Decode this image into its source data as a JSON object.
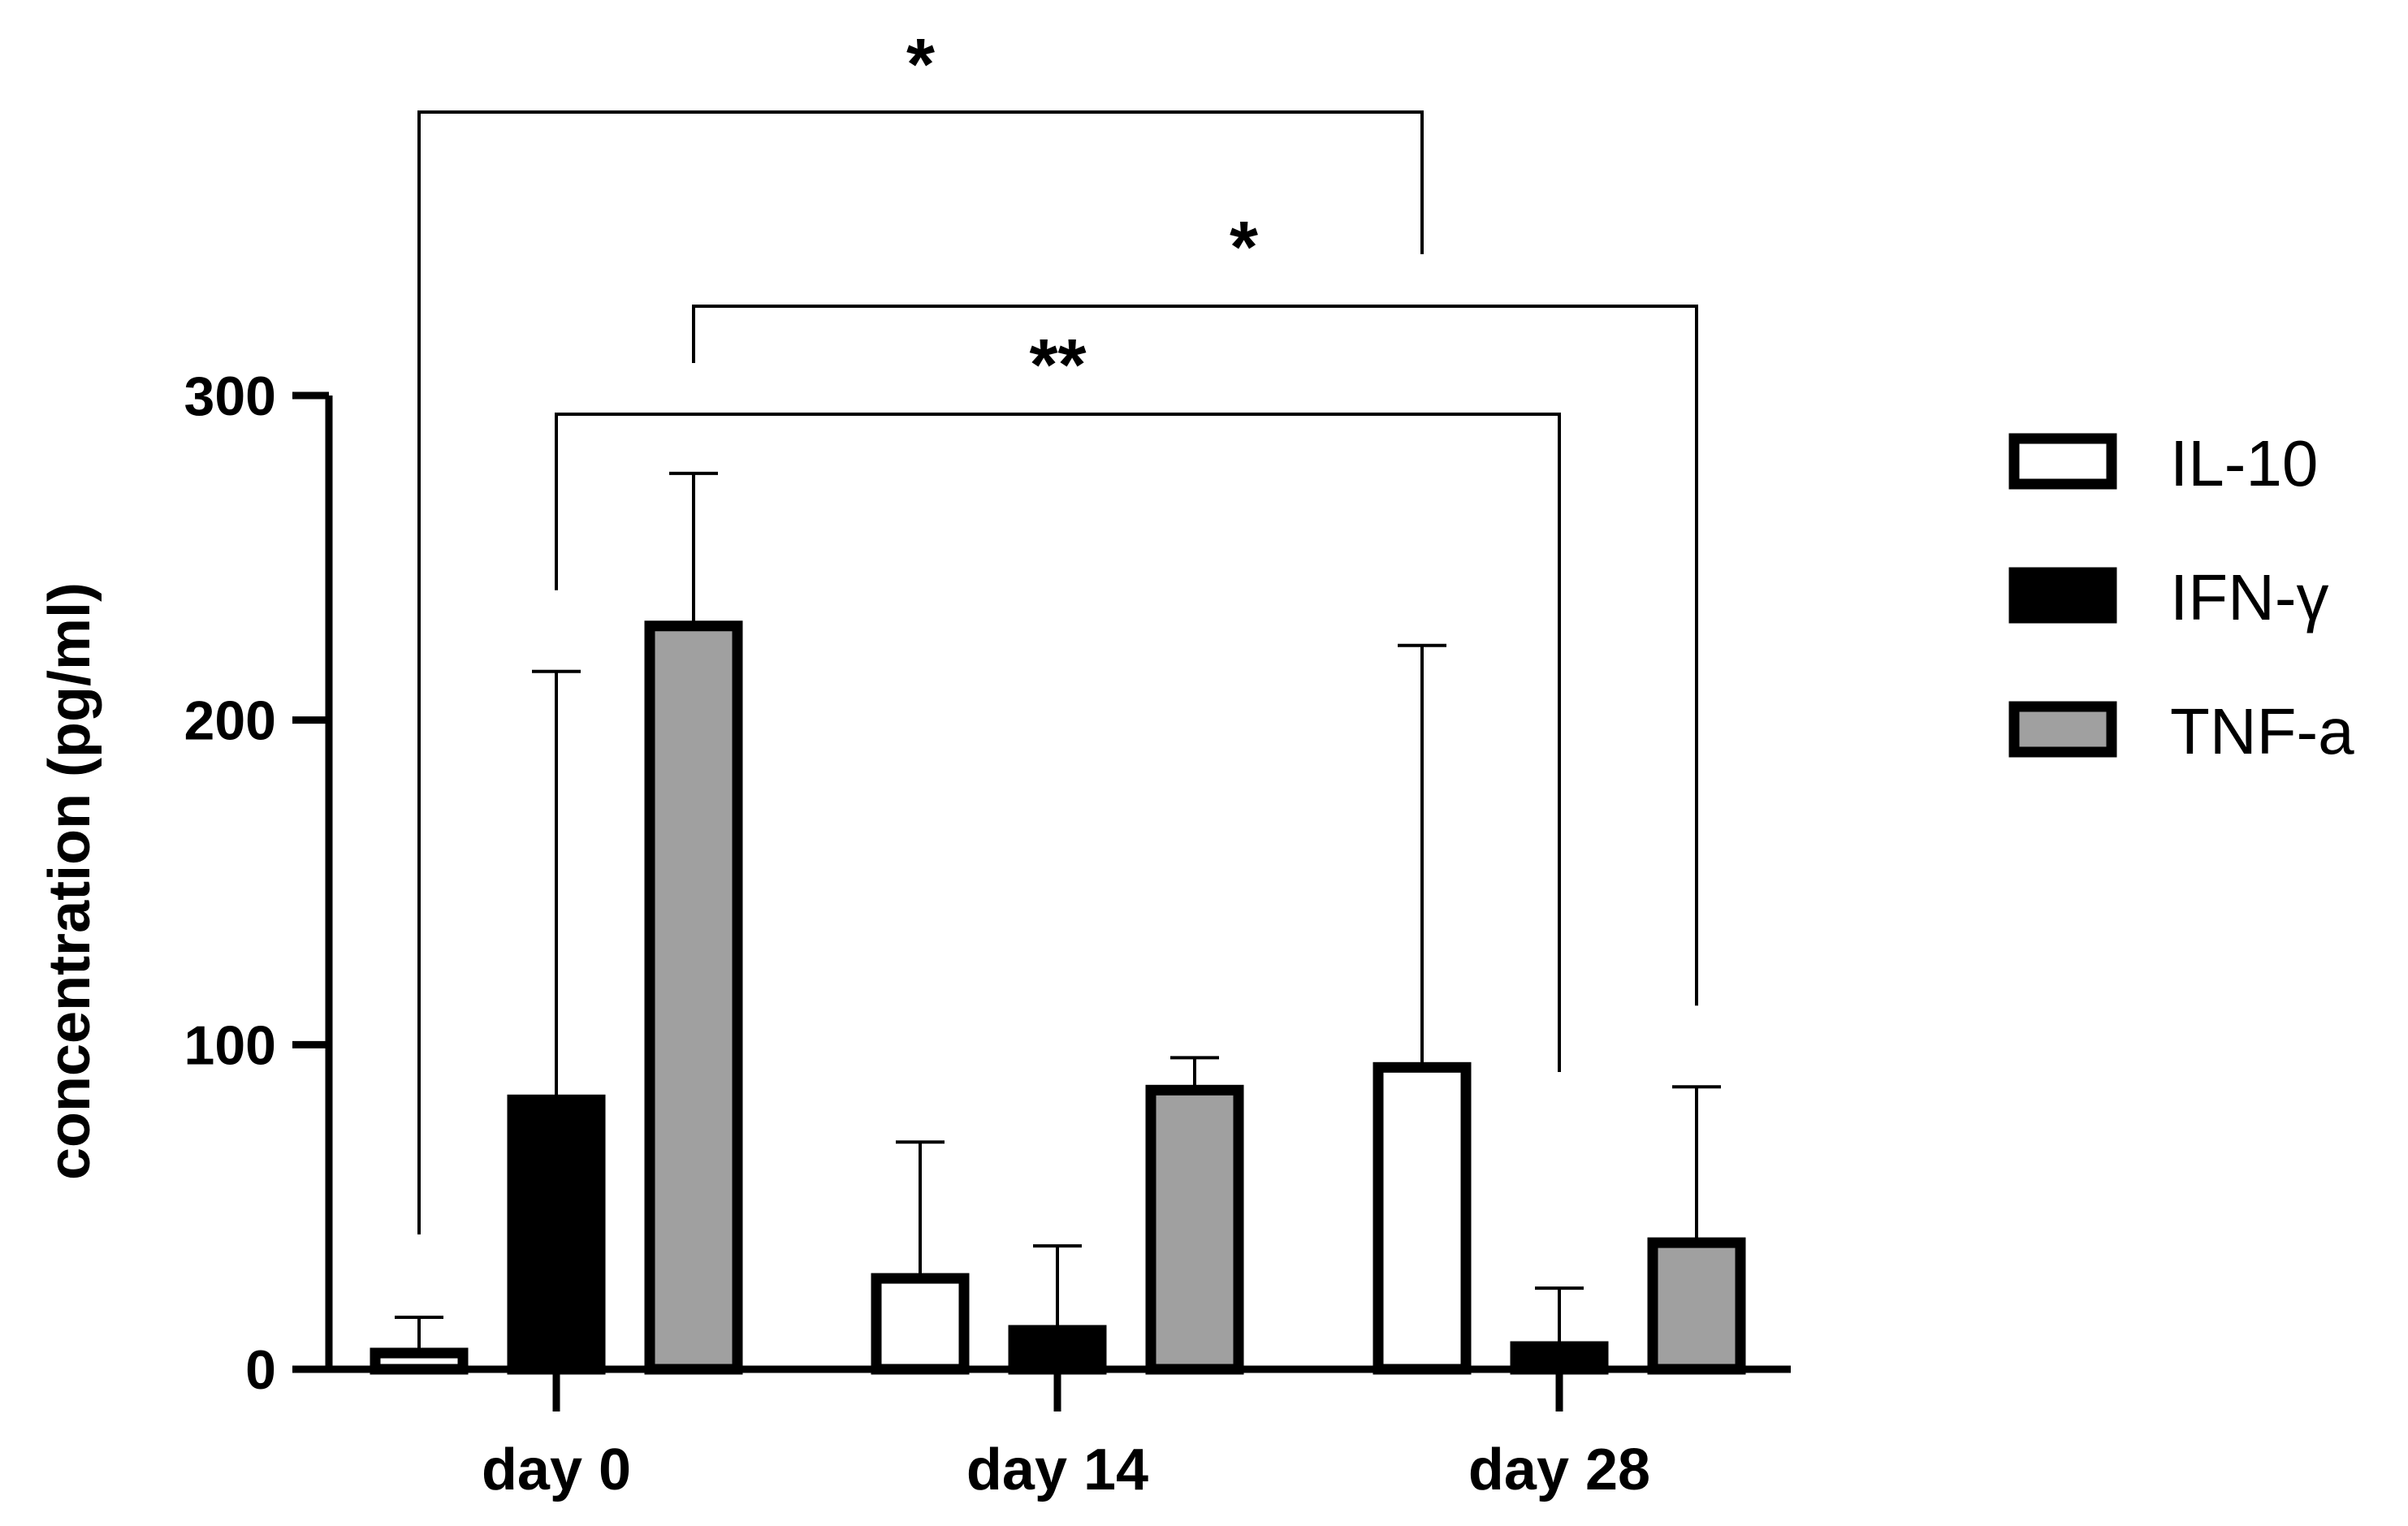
{
  "chart_data": {
    "type": "bar",
    "categories": [
      "day 0",
      "day 14",
      "day 28"
    ],
    "ylabel": "concentration (pg/ml)",
    "ylim": [
      0,
      300
    ],
    "yticks": [
      0,
      100,
      200,
      300
    ],
    "grid": false,
    "legend_position": "right",
    "series": [
      {
        "name": "IL-10",
        "fill": "#ffffff",
        "values": [
          5,
          28,
          93
        ],
        "errors": [
          11,
          42,
          130
        ]
      },
      {
        "name": "IFN-γ",
        "fill": "#000000",
        "values": [
          83,
          12,
          7
        ],
        "errors": [
          132,
          26,
          18
        ]
      },
      {
        "name": "TNF-a",
        "fill": "#a0a0a0",
        "values": [
          229,
          86,
          39
        ],
        "errors": [
          47,
          10,
          48
        ]
      }
    ],
    "significance": [
      {
        "label": "*",
        "from": {
          "category": 0,
          "series": 0
        },
        "to": {
          "category": 2,
          "series": 0
        }
      },
      {
        "label": "*",
        "from": {
          "category": 0,
          "series": 2
        },
        "to": {
          "category": 2,
          "series": 2
        }
      },
      {
        "label": "**",
        "from": {
          "category": 0,
          "series": 1
        },
        "to": {
          "category": 2,
          "series": 1
        }
      }
    ]
  }
}
